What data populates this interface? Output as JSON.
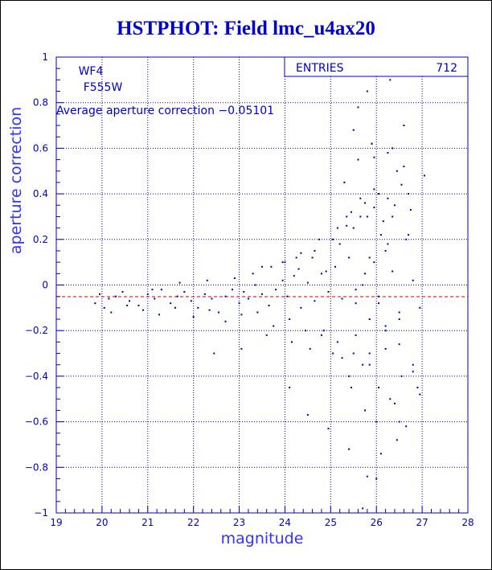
{
  "title": "HSTPHOT: Field lmc_u4ax20",
  "stats": {
    "label": "ENTRIES",
    "value": "712"
  },
  "annotations": {
    "chip": "WF4",
    "filter": "F555W",
    "average_text": "Average aperture correction  −0.05101"
  },
  "colors": {
    "axis": "#0000cc",
    "points": "#0000aa",
    "grid": "#0000cc",
    "average_line": "#cc0000",
    "text": "#0000cc"
  },
  "chart_data": {
    "type": "scatter",
    "title": "HSTPHOT: Field lmc_u4ax20",
    "xlabel": "magnitude",
    "ylabel": "aperture correction",
    "xlim": [
      19,
      28
    ],
    "ylim": [
      -1,
      1
    ],
    "x_ticks": [
      19,
      20,
      21,
      22,
      23,
      24,
      25,
      26,
      27,
      28
    ],
    "y_ticks": [
      -1,
      -0.8,
      -0.6,
      -0.4,
      -0.2,
      0,
      0.2,
      0.4,
      0.6,
      0.8,
      1
    ],
    "y_tick_labels": [
      "−1",
      "−0.8",
      "−0.6",
      "−0.4",
      "−0.2",
      "0",
      "0.2",
      "0.4",
      "0.6",
      "0.8",
      "1"
    ],
    "grid": true,
    "entries": 712,
    "average_line": -0.05101,
    "x": [
      19.85,
      19.95,
      20.05,
      20.15,
      20.3,
      20.45,
      20.6,
      20.8,
      21.0,
      21.15,
      21.3,
      21.5,
      21.65,
      21.8,
      21.95,
      22.1,
      22.25,
      22.4,
      22.55,
      22.7,
      22.85,
      23.0,
      23.1,
      23.2,
      23.35,
      23.5,
      23.65,
      23.8,
      23.95,
      24.05,
      24.2,
      24.35,
      24.5,
      24.65,
      24.8,
      24.95,
      25.1,
      25.25,
      25.4,
      25.55,
      25.7,
      25.85,
      25.95,
      26.05,
      26.2,
      26.35,
      26.5,
      26.65,
      26.8,
      26.95,
      20.2,
      20.55,
      20.9,
      21.25,
      21.6,
      22.0,
      22.35,
      22.7,
      23.05,
      23.4,
      23.75,
      24.1,
      24.45,
      24.8,
      25.15,
      25.5,
      25.85,
      26.2,
      26.55,
      26.9,
      21.1,
      21.7,
      22.3,
      22.9,
      23.3,
      23.7,
      24.0,
      24.3,
      24.6,
      24.9,
      25.2,
      25.5,
      25.8,
      26.1,
      26.4,
      26.7,
      27.05,
      25.3,
      25.6,
      25.9,
      26.25,
      26.6,
      25.45,
      25.75,
      26.0,
      26.3,
      26.65,
      26.95,
      25.35,
      25.65,
      25.95,
      26.15,
      26.45,
      26.75,
      25.05,
      25.4,
      25.7,
      26.05,
      26.4,
      26.8,
      24.15,
      24.55,
      24.85,
      25.25,
      25.55,
      25.85,
      26.2,
      26.5,
      26.8,
      24.35,
      24.75,
      25.15,
      25.45,
      25.75,
      26.05,
      26.35,
      26.7,
      23.5,
      23.95,
      24.25,
      24.65,
      25.05,
      25.35,
      25.65,
      25.95,
      26.25,
      26.55,
      22.45,
      23.05,
      23.6,
      24.1,
      24.5,
      24.95,
      25.4,
      25.8,
      26.1,
      26.5,
      25.6,
      25.9,
      26.3,
      25.7,
      26.0,
      26.45,
      25.8,
      26.15,
      26.9,
      25.5,
      25.95,
      26.35,
      26.6,
      26.2,
      25.75,
      26.05,
      26.5,
      25.55,
      25.85,
      26.25
    ],
    "y": [
      -0.08,
      -0.04,
      -0.1,
      -0.06,
      -0.05,
      -0.03,
      -0.07,
      -0.09,
      -0.04,
      -0.06,
      -0.02,
      -0.08,
      -0.05,
      -0.03,
      -0.07,
      -0.1,
      -0.04,
      -0.06,
      -0.12,
      -0.05,
      -0.02,
      -0.08,
      -0.03,
      -0.06,
      0.0,
      -0.04,
      -0.09,
      -0.02,
      0.02,
      -0.05,
      0.04,
      -0.1,
      0.01,
      -0.07,
      0.05,
      -0.03,
      0.08,
      -0.06,
      0.12,
      -0.02,
      0.0,
      -0.15,
      0.1,
      -0.08,
      0.15,
      0.06,
      -0.12,
      0.2,
      0.02,
      -0.1,
      -0.12,
      -0.09,
      -0.11,
      -0.13,
      -0.1,
      -0.14,
      -0.11,
      -0.16,
      -0.13,
      -0.12,
      -0.18,
      -0.15,
      -0.2,
      -0.22,
      -0.25,
      -0.3,
      -0.35,
      -0.28,
      -0.4,
      -0.45,
      -0.02,
      0.01,
      0.02,
      0.03,
      0.05,
      0.08,
      0.1,
      0.07,
      0.12,
      0.06,
      0.18,
      0.25,
      0.3,
      0.22,
      0.35,
      0.4,
      0.48,
      0.45,
      0.55,
      0.62,
      0.58,
      0.7,
      -0.45,
      -0.55,
      -0.6,
      -0.5,
      -0.62,
      -0.48,
      0.3,
      0.38,
      0.42,
      0.28,
      0.5,
      0.33,
      -0.3,
      -0.4,
      -0.35,
      -0.45,
      -0.52,
      -0.38,
      -0.25,
      -0.28,
      -0.2,
      -0.32,
      -0.22,
      -0.3,
      -0.18,
      -0.26,
      -0.35,
      0.14,
      0.2,
      0.25,
      0.32,
      0.36,
      0.4,
      0.3,
      0.22,
      0.08,
      0.1,
      0.12,
      0.15,
      0.2,
      0.26,
      0.3,
      0.34,
      0.38,
      0.44,
      -0.3,
      -0.28,
      -0.22,
      -0.45,
      -0.57,
      -0.63,
      -0.72,
      -0.84,
      -0.74,
      -0.6,
      0.78,
      0.62,
      0.9,
      -0.98,
      -0.85,
      -0.68,
      0.85,
      0.95,
      0.95,
      0.68,
      0.56,
      0.6,
      0.52,
      -0.2,
      0.05,
      -0.05,
      -0.15,
      -0.08,
      0.12,
      0.18
    ]
  }
}
